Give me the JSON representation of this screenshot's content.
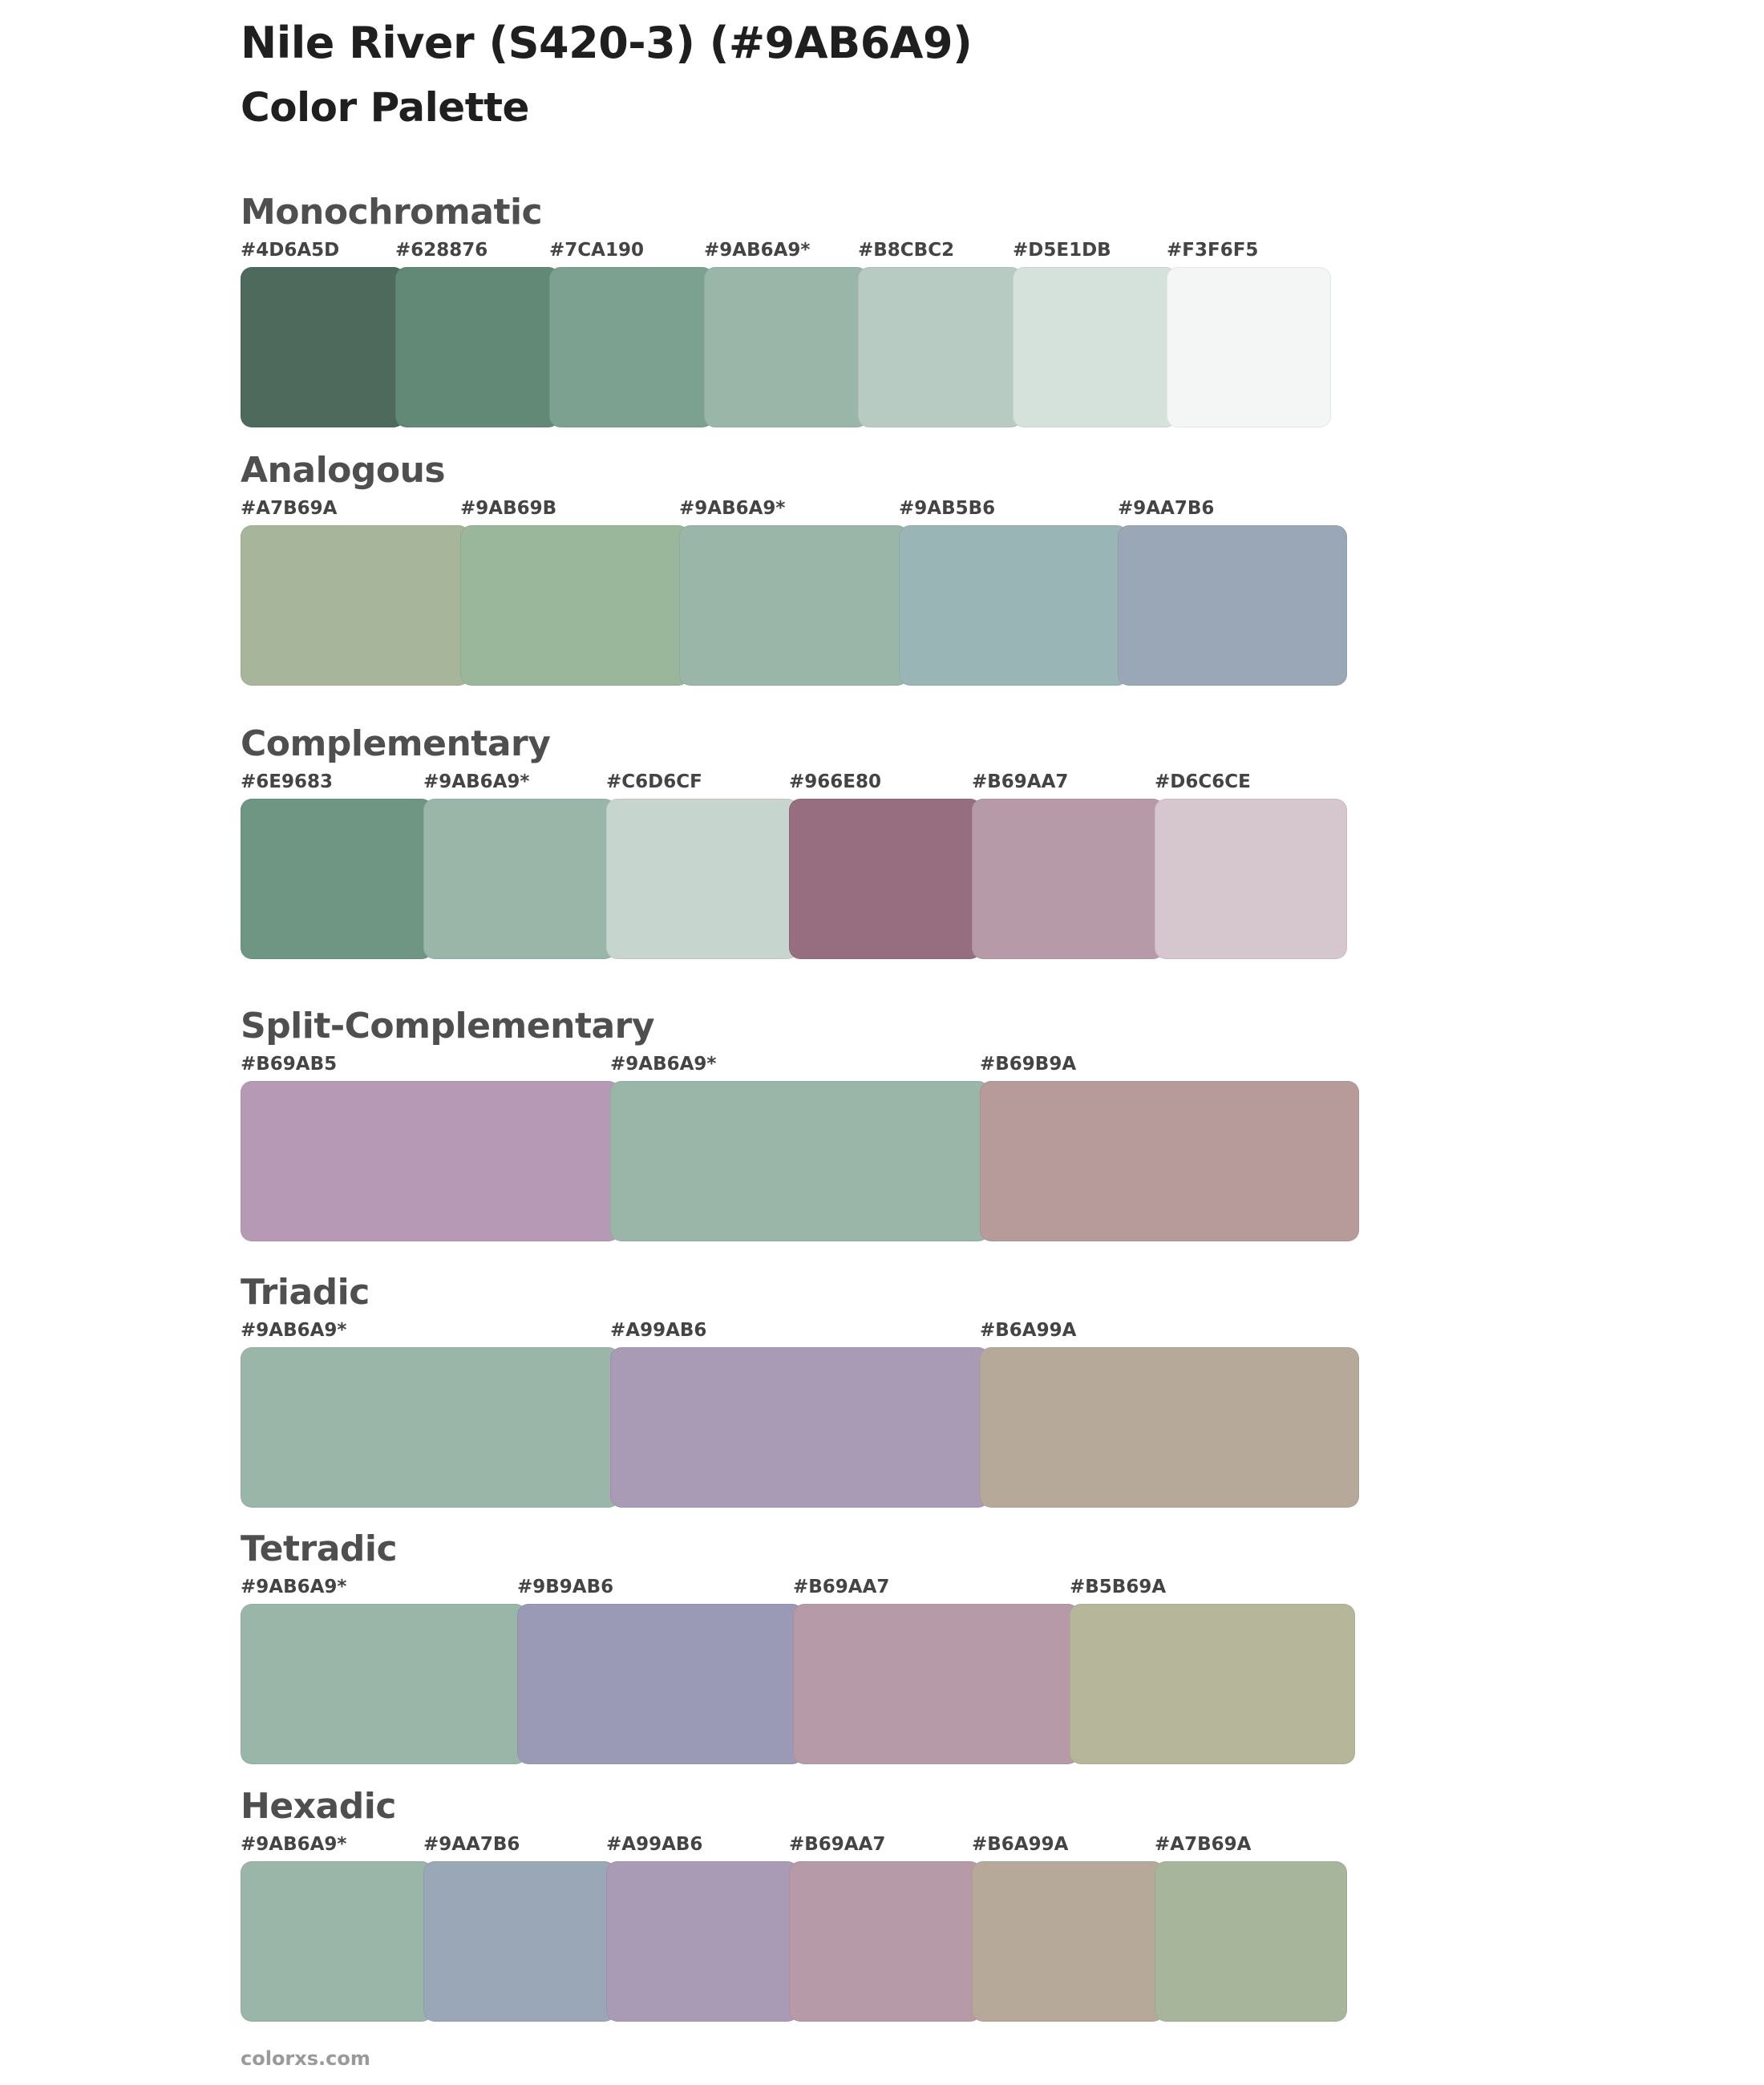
{
  "title": "Nile River (S420-3) (#9AB6A9)",
  "subtitle": "Color Palette",
  "sections": [
    {
      "name": "Monochromatic",
      "colors": [
        {
          "label": "#4D6A5D",
          "hex": "#4D6A5D"
        },
        {
          "label": "#628876",
          "hex": "#628876"
        },
        {
          "label": "#7CA190",
          "hex": "#7CA190"
        },
        {
          "label": "#9AB6A9*",
          "hex": "#9AB6A9"
        },
        {
          "label": "#B8CBC2",
          "hex": "#B8CBC2"
        },
        {
          "label": "#D5E1DB",
          "hex": "#D5E1DB"
        },
        {
          "label": "#F3F6F5",
          "hex": "#F3F6F5"
        }
      ]
    },
    {
      "name": "Analogous",
      "colors": [
        {
          "label": "#A7B69A",
          "hex": "#A7B69A"
        },
        {
          "label": "#9AB69B",
          "hex": "#9AB69B"
        },
        {
          "label": "#9AB6A9*",
          "hex": "#9AB6A9"
        },
        {
          "label": "#9AB5B6",
          "hex": "#9AB5B6"
        },
        {
          "label": "#9AA7B6",
          "hex": "#9AA7B6"
        }
      ]
    },
    {
      "name": "Complementary",
      "colors": [
        {
          "label": "#6E9683",
          "hex": "#6E9683"
        },
        {
          "label": "#9AB6A9*",
          "hex": "#9AB6A9"
        },
        {
          "label": "#C6D6CF",
          "hex": "#C6D6CF"
        },
        {
          "label": "#966E80",
          "hex": "#966E80"
        },
        {
          "label": "#B69AA7",
          "hex": "#B69AA7"
        },
        {
          "label": "#D6C6CE",
          "hex": "#D6C6CE"
        }
      ]
    },
    {
      "name": "Split-Complementary",
      "colors": [
        {
          "label": "#B69AB5",
          "hex": "#B69AB5"
        },
        {
          "label": "#9AB6A9*",
          "hex": "#9AB6A9"
        },
        {
          "label": "#B69B9A",
          "hex": "#B69B9A"
        }
      ]
    },
    {
      "name": "Triadic",
      "colors": [
        {
          "label": "#9AB6A9*",
          "hex": "#9AB6A9"
        },
        {
          "label": "#A99AB6",
          "hex": "#A99AB6"
        },
        {
          "label": "#B6A99A",
          "hex": "#B6A99A"
        }
      ]
    },
    {
      "name": "Tetradic",
      "colors": [
        {
          "label": "#9AB6A9*",
          "hex": "#9AB6A9"
        },
        {
          "label": "#9B9AB6",
          "hex": "#9B9AB6"
        },
        {
          "label": "#B69AA7",
          "hex": "#B69AA7"
        },
        {
          "label": "#B5B69A",
          "hex": "#B5B69A"
        }
      ]
    },
    {
      "name": "Hexadic",
      "colors": [
        {
          "label": "#9AB6A9*",
          "hex": "#9AB6A9"
        },
        {
          "label": "#9AA7B6",
          "hex": "#9AA7B6"
        },
        {
          "label": "#A99AB6",
          "hex": "#A99AB6"
        },
        {
          "label": "#B69AA7",
          "hex": "#B69AA7"
        },
        {
          "label": "#B6A99A",
          "hex": "#B6A99A"
        },
        {
          "label": "#A7B69A",
          "hex": "#A7B69A"
        }
      ]
    }
  ],
  "footer": "colorxs.com"
}
